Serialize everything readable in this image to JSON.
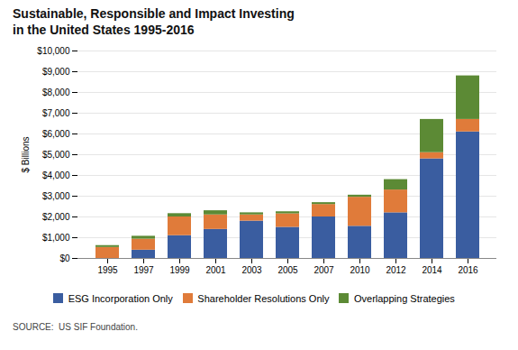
{
  "chart_data": {
    "type": "bar",
    "stacked": true,
    "title": "Sustainable, Responsible and Impact Investing",
    "subtitle": "in the United States 1995-2016",
    "caption": "SOURCE:  US SIF Foundation.",
    "categories": [
      "1995",
      "1997",
      "1999",
      "2001",
      "2003",
      "2005",
      "2007",
      "2010",
      "2012",
      "2014",
      "2016"
    ],
    "series": [
      {
        "name": "ESG Incorporation Only",
        "color": "#3A5DA0",
        "values": [
          0,
          400,
          1100,
          1400,
          1800,
          1500,
          2000,
          1550,
          2200,
          4800,
          6100
        ]
      },
      {
        "name": "Shareholder Resolutions Only",
        "color": "#E07B3A",
        "values": [
          530,
          530,
          900,
          700,
          300,
          650,
          600,
          1400,
          1100,
          300,
          600
        ]
      },
      {
        "name": "Overlapping Strategies",
        "color": "#5C8A35",
        "values": [
          90,
          140,
          160,
          200,
          100,
          100,
          90,
          100,
          500,
          1600,
          2100
        ]
      }
    ],
    "ylabel": "$ Billions",
    "ylim": [
      0,
      10000
    ],
    "yticks": [
      {
        "value": 0,
        "label": "$0"
      },
      {
        "value": 1000,
        "label": "$1,000"
      },
      {
        "value": 2000,
        "label": "$2,000"
      },
      {
        "value": 3000,
        "label": "$3,000"
      },
      {
        "value": 4000,
        "label": "$4,000"
      },
      {
        "value": 5000,
        "label": "$5,000"
      },
      {
        "value": 6000,
        "label": "$6,000"
      },
      {
        "value": 7000,
        "label": "$7,000"
      },
      {
        "value": 8000,
        "label": "$8,000"
      },
      {
        "value": 9000,
        "label": "$9,000"
      },
      {
        "value": 10000,
        "label": "$10,000"
      }
    ],
    "grid": true,
    "legend": "bottom"
  }
}
